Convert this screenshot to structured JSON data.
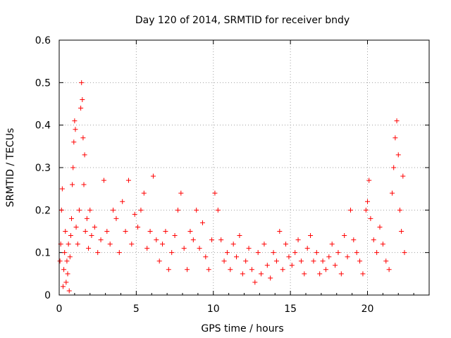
{
  "chart_data": {
    "type": "scatter",
    "title": "Day 120 of 2014, SRMTID for receiver bndy",
    "xlabel": "GPS time / hours",
    "ylabel": "SRMTID / TECUs",
    "xlim": [
      0,
      24
    ],
    "ylim": [
      0,
      0.6
    ],
    "x_ticks": [
      "0",
      "5",
      "10",
      "15",
      "20"
    ],
    "y_ticks": [
      "0",
      "0.1",
      "0.2",
      "0.3",
      "0.4",
      "0.5",
      "0.6"
    ],
    "grid": true,
    "marker": "+",
    "color": "#ff0000",
    "series": [
      {
        "name": "SRMTID",
        "points": [
          [
            0.05,
            0.08
          ],
          [
            0.1,
            0.12
          ],
          [
            0.15,
            0.2
          ],
          [
            0.2,
            0.25
          ],
          [
            0.25,
            0.02
          ],
          [
            0.3,
            0.06
          ],
          [
            0.35,
            0.1
          ],
          [
            0.4,
            0.15
          ],
          [
            0.45,
            0.03
          ],
          [
            0.5,
            0.08
          ],
          [
            0.55,
            0.05
          ],
          [
            0.6,
            0.12
          ],
          [
            0.65,
            0.01
          ],
          [
            0.7,
            0.09
          ],
          [
            0.75,
            0.14
          ],
          [
            0.8,
            0.18
          ],
          [
            0.85,
            0.26
          ],
          [
            0.9,
            0.3
          ],
          [
            0.95,
            0.36
          ],
          [
            1.0,
            0.41
          ],
          [
            1.05,
            0.39
          ],
          [
            1.1,
            0.16
          ],
          [
            1.2,
            0.12
          ],
          [
            1.3,
            0.2
          ],
          [
            1.4,
            0.44
          ],
          [
            1.45,
            0.5
          ],
          [
            1.5,
            0.46
          ],
          [
            1.55,
            0.37
          ],
          [
            1.6,
            0.26
          ],
          [
            1.65,
            0.33
          ],
          [
            1.7,
            0.15
          ],
          [
            1.8,
            0.18
          ],
          [
            1.9,
            0.11
          ],
          [
            2.0,
            0.2
          ],
          [
            2.1,
            0.14
          ],
          [
            2.3,
            0.16
          ],
          [
            2.5,
            0.1
          ],
          [
            2.7,
            0.13
          ],
          [
            2.9,
            0.27
          ],
          [
            3.1,
            0.15
          ],
          [
            3.3,
            0.12
          ],
          [
            3.5,
            0.2
          ],
          [
            3.7,
            0.18
          ],
          [
            3.9,
            0.1
          ],
          [
            4.1,
            0.22
          ],
          [
            4.3,
            0.15
          ],
          [
            4.5,
            0.27
          ],
          [
            4.7,
            0.12
          ],
          [
            4.9,
            0.19
          ],
          [
            5.1,
            0.16
          ],
          [
            5.3,
            0.2
          ],
          [
            5.5,
            0.24
          ],
          [
            5.7,
            0.11
          ],
          [
            5.9,
            0.15
          ],
          [
            6.1,
            0.28
          ],
          [
            6.3,
            0.13
          ],
          [
            6.5,
            0.08
          ],
          [
            6.7,
            0.12
          ],
          [
            6.9,
            0.15
          ],
          [
            7.1,
            0.06
          ],
          [
            7.3,
            0.1
          ],
          [
            7.5,
            0.14
          ],
          [
            7.7,
            0.2
          ],
          [
            7.9,
            0.24
          ],
          [
            8.1,
            0.11
          ],
          [
            8.3,
            0.06
          ],
          [
            8.5,
            0.15
          ],
          [
            8.7,
            0.13
          ],
          [
            8.9,
            0.2
          ],
          [
            9.1,
            0.11
          ],
          [
            9.3,
            0.17
          ],
          [
            9.5,
            0.09
          ],
          [
            9.7,
            0.06
          ],
          [
            9.9,
            0.13
          ],
          [
            10.1,
            0.24
          ],
          [
            10.3,
            0.2
          ],
          [
            10.5,
            0.13
          ],
          [
            10.7,
            0.08
          ],
          [
            10.9,
            0.1
          ],
          [
            11.1,
            0.06
          ],
          [
            11.3,
            0.12
          ],
          [
            11.5,
            0.09
          ],
          [
            11.7,
            0.14
          ],
          [
            11.9,
            0.05
          ],
          [
            12.1,
            0.08
          ],
          [
            12.3,
            0.11
          ],
          [
            12.5,
            0.06
          ],
          [
            12.7,
            0.03
          ],
          [
            12.9,
            0.1
          ],
          [
            13.1,
            0.05
          ],
          [
            13.3,
            0.12
          ],
          [
            13.5,
            0.07
          ],
          [
            13.7,
            0.04
          ],
          [
            13.9,
            0.1
          ],
          [
            14.1,
            0.08
          ],
          [
            14.3,
            0.15
          ],
          [
            14.5,
            0.06
          ],
          [
            14.7,
            0.12
          ],
          [
            14.9,
            0.09
          ],
          [
            15.1,
            0.07
          ],
          [
            15.3,
            0.1
          ],
          [
            15.5,
            0.13
          ],
          [
            15.7,
            0.08
          ],
          [
            15.9,
            0.05
          ],
          [
            16.1,
            0.11
          ],
          [
            16.3,
            0.14
          ],
          [
            16.5,
            0.08
          ],
          [
            16.7,
            0.1
          ],
          [
            16.9,
            0.05
          ],
          [
            17.1,
            0.08
          ],
          [
            17.3,
            0.06
          ],
          [
            17.5,
            0.09
          ],
          [
            17.7,
            0.12
          ],
          [
            17.9,
            0.07
          ],
          [
            18.1,
            0.1
          ],
          [
            18.3,
            0.05
          ],
          [
            18.5,
            0.14
          ],
          [
            18.7,
            0.09
          ],
          [
            18.9,
            0.2
          ],
          [
            19.1,
            0.13
          ],
          [
            19.3,
            0.1
          ],
          [
            19.5,
            0.08
          ],
          [
            19.7,
            0.05
          ],
          [
            19.9,
            0.2
          ],
          [
            20.0,
            0.22
          ],
          [
            20.1,
            0.27
          ],
          [
            20.2,
            0.18
          ],
          [
            20.4,
            0.13
          ],
          [
            20.6,
            0.1
          ],
          [
            20.8,
            0.16
          ],
          [
            21.0,
            0.12
          ],
          [
            21.2,
            0.08
          ],
          [
            21.4,
            0.06
          ],
          [
            21.6,
            0.24
          ],
          [
            21.7,
            0.3
          ],
          [
            21.8,
            0.37
          ],
          [
            21.9,
            0.41
          ],
          [
            22.0,
            0.33
          ],
          [
            22.1,
            0.2
          ],
          [
            22.2,
            0.15
          ],
          [
            22.3,
            0.28
          ],
          [
            22.4,
            0.1
          ]
        ]
      }
    ]
  }
}
